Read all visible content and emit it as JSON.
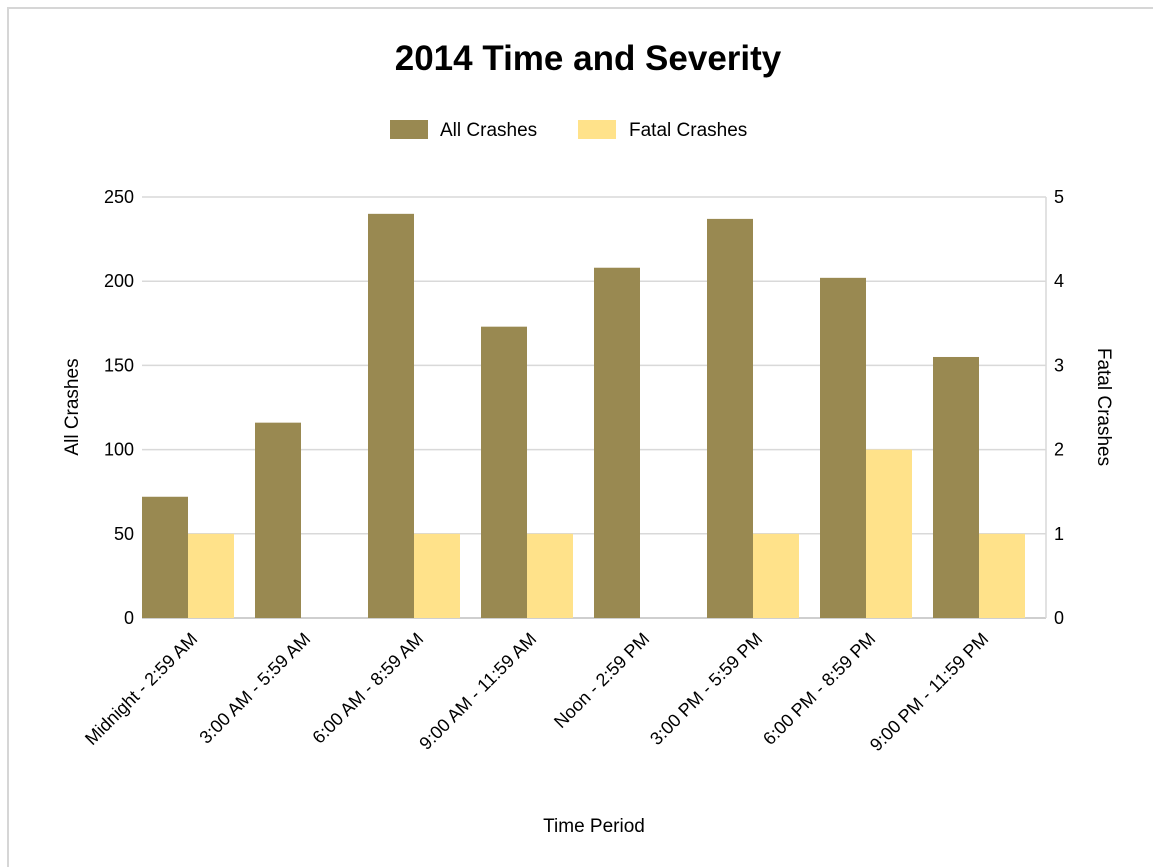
{
  "chart_data": {
    "type": "bar",
    "title": "2014 Time and Severity",
    "xlabel": "Time Period",
    "ylabel": "All Crashes",
    "y2label": "Fatal Crashes",
    "categories": [
      "Midnight - 2:59 AM",
      "3:00 AM - 5:59 AM",
      "6:00 AM - 8:59 AM",
      "9:00 AM - 11:59 AM",
      "Noon - 2:59 PM",
      "3:00 PM - 5:59 PM",
      "6:00 PM - 8:59 PM",
      "9:00 PM - 11:59 PM"
    ],
    "series": [
      {
        "name": "All Crashes",
        "axis": "left",
        "color": "#998951",
        "values": [
          72,
          116,
          240,
          173,
          208,
          237,
          202,
          155
        ]
      },
      {
        "name": "Fatal Crashes",
        "axis": "right",
        "color": "#ffe28a",
        "values": [
          1,
          0,
          1,
          1,
          0,
          1,
          2,
          1
        ]
      }
    ],
    "ylim": [
      0,
      250
    ],
    "yticks": [
      "0",
      "50",
      "100",
      "150",
      "200",
      "250"
    ],
    "y2lim": [
      0,
      5
    ],
    "y2ticks": [
      "0",
      "1",
      "2",
      "3",
      "4",
      "5"
    ],
    "grid": true,
    "legend_position": "top-center"
  }
}
